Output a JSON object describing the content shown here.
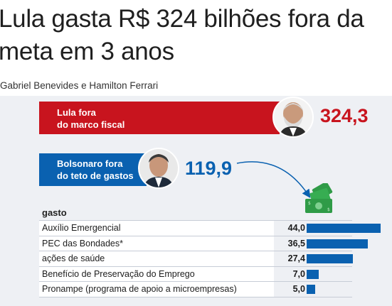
{
  "headline": "Lula gasta R$ 324 bilhões fora da meta em 3 anos",
  "byline": "Gabriel Benevides e Hamilton Ferrari",
  "colors": {
    "lula": "#c8141e",
    "bolsonaro": "#0a61b0",
    "bars": "#0a61b0"
  },
  "chart_data": [
    {
      "type": "bar",
      "categories": [
        "Lula fora do marco fiscal",
        "Bolsonaro fora do teto de gastos"
      ],
      "values": [
        324.3,
        119.9
      ],
      "value_labels": [
        "324,3",
        "119,9"
      ],
      "label_lines": [
        [
          "Lula fora",
          "do marco fiscal"
        ],
        [
          "Bolsonaro fora",
          "do teto de gastos"
        ]
      ]
    },
    {
      "type": "bar",
      "orientation": "horizontal",
      "header": "gasto",
      "categories": [
        "Auxílio Emergencial",
        "PEC das Bondades*",
        "ações de saúde",
        "Benefício de Preservação do Emprego",
        "Pronampe (programa de apoio a microempresas)"
      ],
      "values": [
        44.0,
        36.5,
        27.4,
        7.0,
        5.0
      ],
      "value_labels": [
        "44,0",
        "36,5",
        "27,4",
        "7,0",
        "5,0"
      ]
    }
  ]
}
